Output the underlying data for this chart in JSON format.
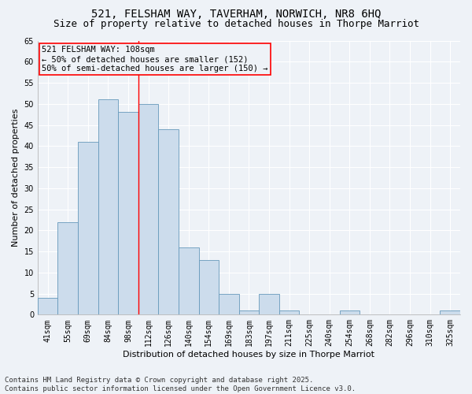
{
  "title_line1": "521, FELSHAM WAY, TAVERHAM, NORWICH, NR8 6HQ",
  "title_line2": "Size of property relative to detached houses in Thorpe Marriot",
  "xlabel": "Distribution of detached houses by size in Thorpe Marriot",
  "ylabel": "Number of detached properties",
  "bin_labels": [
    "41sqm",
    "55sqm",
    "69sqm",
    "84sqm",
    "98sqm",
    "112sqm",
    "126sqm",
    "140sqm",
    "154sqm",
    "169sqm",
    "183sqm",
    "197sqm",
    "211sqm",
    "225sqm",
    "240sqm",
    "254sqm",
    "268sqm",
    "282sqm",
    "296sqm",
    "310sqm",
    "325sqm"
  ],
  "bar_heights": [
    4,
    22,
    41,
    51,
    48,
    50,
    44,
    16,
    13,
    5,
    1,
    5,
    1,
    0,
    0,
    1,
    0,
    0,
    0,
    0,
    1
  ],
  "bar_color": "#ccdcec",
  "bar_edge_color": "#6699bb",
  "annotation_text": "521 FELSHAM WAY: 108sqm\n← 50% of detached houses are smaller (152)\n50% of semi-detached houses are larger (150) →",
  "ylim": [
    0,
    65
  ],
  "yticks": [
    0,
    5,
    10,
    15,
    20,
    25,
    30,
    35,
    40,
    45,
    50,
    55,
    60,
    65
  ],
  "background_color": "#eef2f7",
  "grid_color": "#ffffff",
  "footer_line1": "Contains HM Land Registry data © Crown copyright and database right 2025.",
  "footer_line2": "Contains public sector information licensed under the Open Government Licence v3.0.",
  "title_fontsize": 10,
  "subtitle_fontsize": 9,
  "axis_label_fontsize": 8,
  "tick_fontsize": 7,
  "annotation_fontsize": 7.5,
  "footer_fontsize": 6.5
}
